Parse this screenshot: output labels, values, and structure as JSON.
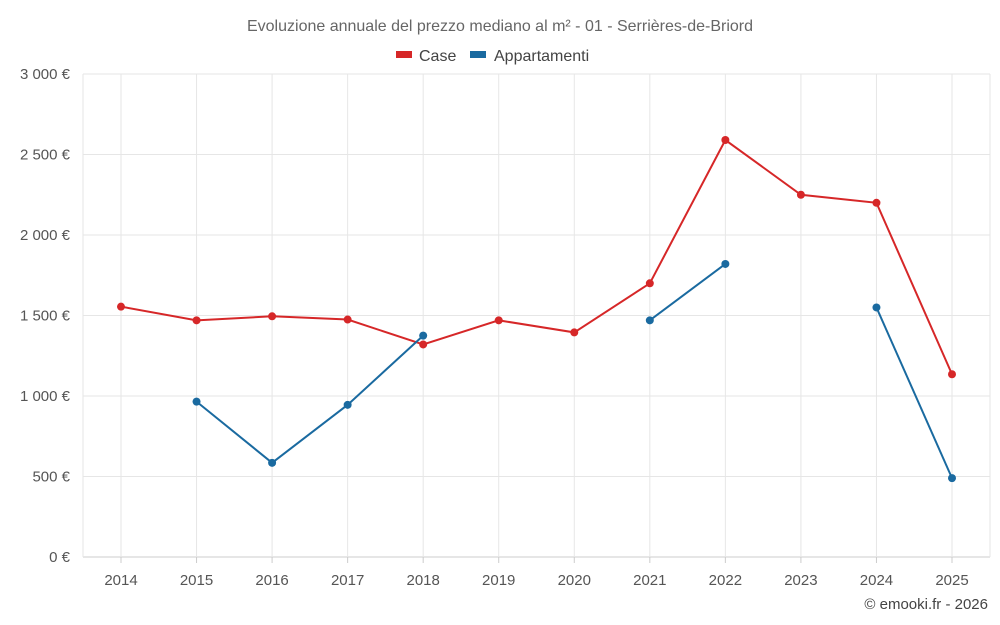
{
  "chart_data": {
    "type": "line",
    "title": "Evoluzione annuale del prezzo mediano al m² - 01 - Serrières-de-Briord",
    "categories": [
      "2014",
      "2015",
      "2016",
      "2017",
      "2018",
      "2019",
      "2020",
      "2021",
      "2022",
      "2023",
      "2024",
      "2025"
    ],
    "ylim": [
      0,
      3000
    ],
    "yticks": [
      0,
      500,
      1000,
      1500,
      2000,
      2500,
      3000
    ],
    "ytick_labels": [
      "0 €",
      "500 €",
      "1 000 €",
      "1 500 €",
      "2 000 €",
      "2 500 €",
      "3 000 €"
    ],
    "grid": true,
    "legend_position": "top-center",
    "series": [
      {
        "name": "Case",
        "color": "#d62728",
        "values": [
          1555,
          1470,
          1495,
          1475,
          1320,
          1470,
          1395,
          1700,
          2590,
          2250,
          2200,
          1135
        ]
      },
      {
        "name": "Appartamenti",
        "color": "#1a6aa0",
        "values": [
          null,
          965,
          585,
          945,
          1375,
          null,
          null,
          1470,
          1820,
          null,
          1550,
          490
        ]
      }
    ]
  },
  "credit": "© emooki.fr - 2026"
}
